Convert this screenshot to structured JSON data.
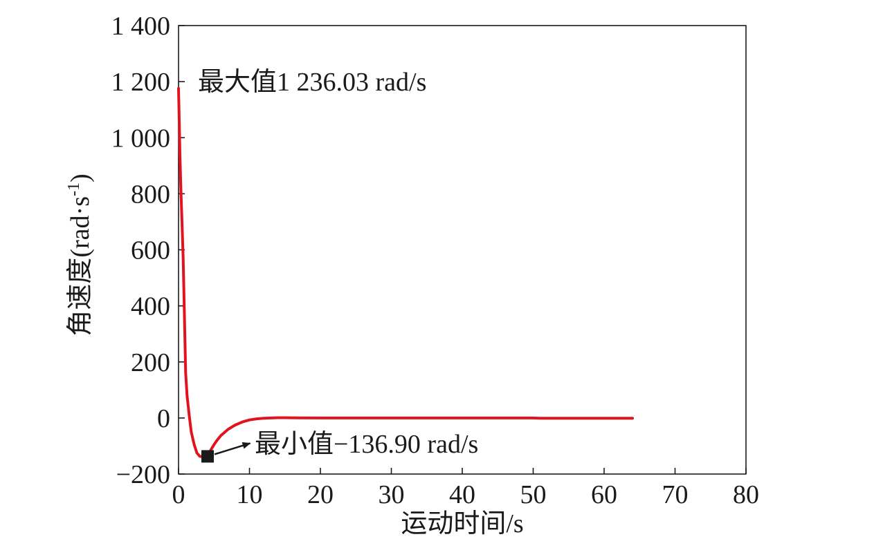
{
  "chart_data": {
    "type": "line",
    "xlabel": "运动时间/s",
    "ylabel_main": "角速度(rad·s",
    "ylabel_sup": "-1",
    "ylabel_close": ")",
    "xlim": [
      0,
      80
    ],
    "ylim": [
      -200,
      1400
    ],
    "xticks": [
      0,
      10,
      20,
      30,
      40,
      50,
      60,
      70,
      80
    ],
    "xtick_labels": [
      "0",
      "10",
      "20",
      "30",
      "40",
      "50",
      "60",
      "70",
      "80"
    ],
    "yticks": [
      -200,
      0,
      200,
      400,
      600,
      800,
      1000,
      1200,
      1400
    ],
    "ytick_labels": [
      "−200",
      "0",
      "200",
      "400",
      "600",
      "800",
      "1 000",
      "1 200",
      "1 400"
    ],
    "grid": false,
    "line_color": "#e0141e",
    "series": [
      {
        "x": [
          0,
          0.1,
          0.2,
          0.35,
          0.5,
          0.65,
          0.8,
          1.0,
          1.2,
          1.5,
          1.8,
          2.2,
          2.6,
          3.0,
          3.4,
          3.8,
          4.1,
          4.6,
          5.0,
          5.5,
          6,
          7,
          8,
          9,
          10,
          11,
          12,
          13,
          14,
          15,
          17,
          20,
          25,
          30,
          35,
          40,
          45,
          50,
          51,
          55,
          60,
          64
        ],
        "y": [
          1176,
          1060,
          930,
          800,
          690,
          570,
          400,
          160,
          80,
          10,
          -50,
          -95,
          -125,
          -137,
          -138,
          -137,
          -136.9,
          -112,
          -95,
          -77,
          -62,
          -40,
          -25,
          -14,
          -7,
          -3,
          -1,
          0,
          1,
          1,
          0.5,
          0,
          0,
          0,
          0,
          0,
          0,
          0,
          -1,
          -1,
          -1,
          -1
        ]
      }
    ],
    "annotations": {
      "max_label": "最大值1 236.03 rad/s",
      "min_label": "最小值−136.90 rad/s",
      "min_point": {
        "x": 4.1,
        "y": -136.9
      }
    }
  }
}
